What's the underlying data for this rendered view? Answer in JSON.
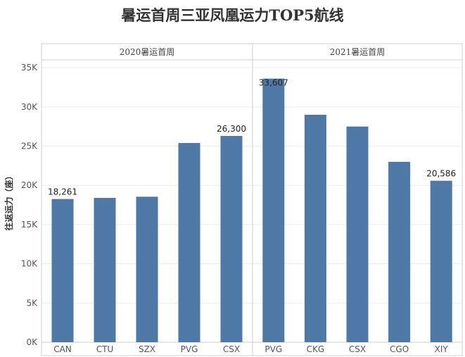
{
  "chart_data": {
    "type": "bar",
    "title": "暑运首周三亚凤凰运力TOP5航线",
    "ylabel": "往返运力（座）",
    "xlabel": "",
    "ylim": [
      0,
      36000
    ],
    "yticks": [
      {
        "value": 0,
        "label": "0K"
      },
      {
        "value": 5000,
        "label": "5K"
      },
      {
        "value": 10000,
        "label": "10K"
      },
      {
        "value": 15000,
        "label": "15K"
      },
      {
        "value": 20000,
        "label": "20K"
      },
      {
        "value": 25000,
        "label": "25K"
      },
      {
        "value": 30000,
        "label": "30K"
      },
      {
        "value": 35000,
        "label": "35K"
      }
    ],
    "bar_color": "#4e79a7",
    "panels": [
      {
        "header": "2020暑运首周",
        "categories": [
          "CAN",
          "CTU",
          "SZX",
          "PVG",
          "CSX"
        ],
        "values": [
          18261,
          18400,
          18550,
          25400,
          26300
        ],
        "labels": [
          "18,261",
          "",
          "",
          "",
          "26,300"
        ]
      },
      {
        "header": "2021暑运首周",
        "categories": [
          "PVG",
          "CKG",
          "CSX",
          "CGO",
          "XIY"
        ],
        "values": [
          33607,
          29000,
          27500,
          23000,
          20586
        ],
        "labels": [
          "33,607",
          "",
          "",
          "",
          "20,586"
        ]
      }
    ]
  }
}
